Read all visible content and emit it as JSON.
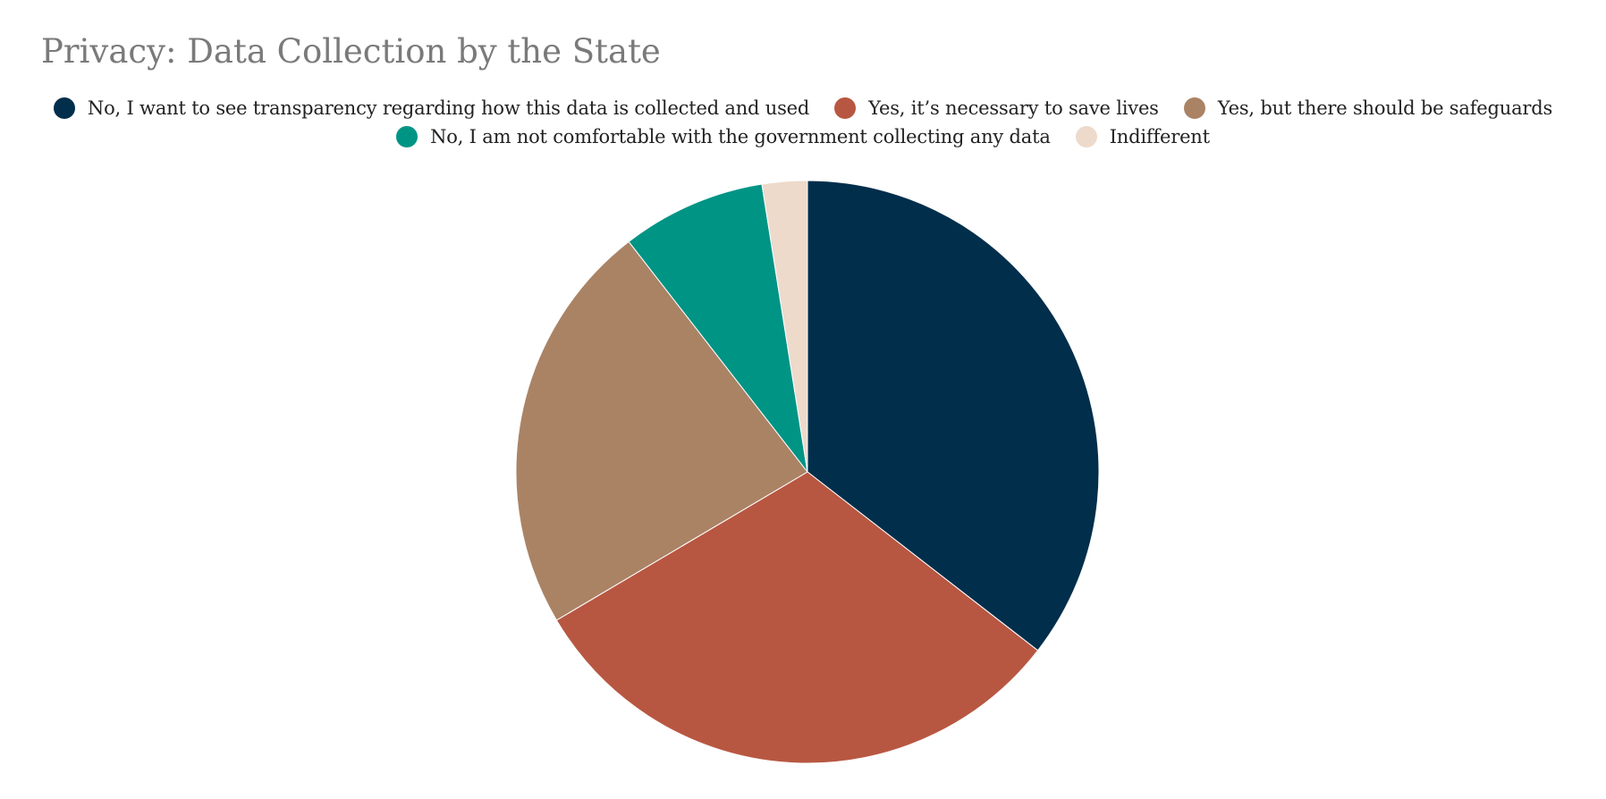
{
  "chart_data": {
    "type": "pie",
    "title": "Privacy: Data Collection by the State",
    "legend_position": "top",
    "start_angle_deg": 0,
    "direction": "clockwise",
    "slices": [
      {
        "label": "No, I want to see transparency regarding how this data is collected and used",
        "value": 35.5,
        "color": "#002e4b"
      },
      {
        "label": "Yes, it’s necessary to save lives",
        "value": 31.0,
        "color": "#b85741"
      },
      {
        "label": "Yes, but there should be safeguards",
        "value": 23.0,
        "color": "#aa8365"
      },
      {
        "label": "No, I am not comfortable with the government collecting any data",
        "value": 8.0,
        "color": "#009485"
      },
      {
        "label": "Indifferent",
        "value": 2.5,
        "color": "#eddacb"
      }
    ]
  }
}
